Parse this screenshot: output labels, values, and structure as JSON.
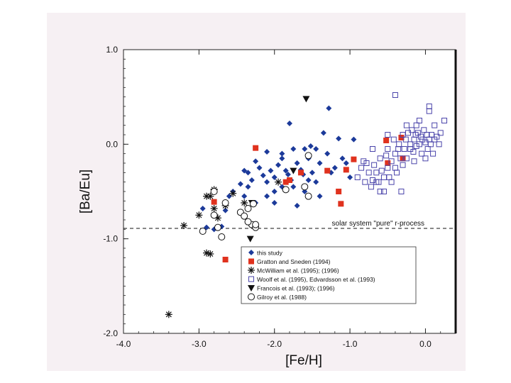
{
  "chart_data": {
    "type": "scatter",
    "xlabel": "[Fe/H]",
    "ylabel": "[Ba/Eu]",
    "xlim": [
      -4.0,
      0.4
    ],
    "ylim": [
      -2.0,
      1.0
    ],
    "xticks": [
      "-4.0",
      "-3.0",
      "-2.0",
      "-1.0",
      "0.0"
    ],
    "yticks": [
      "1.0",
      "0.0",
      "-1.0",
      "-2.0"
    ],
    "grid": false,
    "legend_position": "bottom-center",
    "reference_line": {
      "y": -0.89,
      "label": "solar system \"pure\" r-process",
      "style": "dashed"
    },
    "series": [
      {
        "name": "this study",
        "marker": "diamond",
        "color": "#1c3a9a",
        "points": [
          [
            -2.95,
            -0.68
          ],
          [
            -2.9,
            -0.88
          ],
          [
            -2.8,
            -0.9
          ],
          [
            -2.7,
            -0.87
          ],
          [
            -2.65,
            -0.7
          ],
          [
            -2.6,
            -0.55
          ],
          [
            -2.55,
            -0.5
          ],
          [
            -2.45,
            -0.42
          ],
          [
            -2.4,
            -0.55
          ],
          [
            -2.35,
            -0.45
          ],
          [
            -2.35,
            -0.3
          ],
          [
            -2.3,
            -0.38
          ],
          [
            -2.25,
            -0.18
          ],
          [
            -2.2,
            -0.25
          ],
          [
            -2.15,
            -0.33
          ],
          [
            -2.1,
            -0.4
          ],
          [
            -2.1,
            -0.08
          ],
          [
            -2.05,
            -0.28
          ],
          [
            -2.0,
            -0.35
          ],
          [
            -1.95,
            -0.22
          ],
          [
            -1.9,
            -0.45
          ],
          [
            -1.9,
            -0.15
          ],
          [
            -1.85,
            -0.28
          ],
          [
            -1.82,
            -0.32
          ],
          [
            -1.8,
            0.22
          ],
          [
            -1.78,
            -0.38
          ],
          [
            -1.75,
            -0.45
          ],
          [
            -1.7,
            -0.2
          ],
          [
            -1.65,
            -0.27
          ],
          [
            -1.62,
            -0.32
          ],
          [
            -1.6,
            -0.5
          ],
          [
            -1.55,
            -0.15
          ],
          [
            -1.55,
            -0.38
          ],
          [
            -1.52,
            -0.02
          ],
          [
            -1.5,
            -0.3
          ],
          [
            -1.45,
            -0.4
          ],
          [
            -1.4,
            -0.2
          ],
          [
            -1.35,
            0.12
          ],
          [
            -1.3,
            -0.1
          ],
          [
            -1.28,
            0.38
          ],
          [
            -1.25,
            -0.3
          ],
          [
            -1.2,
            -0.25
          ],
          [
            -1.15,
            0.06
          ],
          [
            -1.1,
            -0.15
          ],
          [
            -1.05,
            -0.2
          ],
          [
            -1.0,
            -0.35
          ],
          [
            -2.0,
            -0.62
          ],
          [
            -1.7,
            -0.65
          ],
          [
            -1.4,
            -0.55
          ],
          [
            -2.1,
            -0.55
          ],
          [
            -2.25,
            -0.62
          ],
          [
            -0.95,
            0.05
          ],
          [
            -1.6,
            -0.05
          ],
          [
            -1.75,
            -0.05
          ],
          [
            -1.9,
            -0.1
          ],
          [
            -2.0,
            -0.5
          ],
          [
            -1.45,
            -0.05
          ],
          [
            -2.4,
            -0.28
          ]
        ]
      },
      {
        "name": "Gratton and Sneden (1994)",
        "marker": "square-filled",
        "color": "#e0321e",
        "points": [
          [
            -2.25,
            -0.04
          ],
          [
            -2.8,
            -0.61
          ],
          [
            -2.65,
            -1.22
          ],
          [
            -1.8,
            -0.38
          ],
          [
            -1.65,
            -0.3
          ],
          [
            -1.85,
            -0.4
          ],
          [
            -1.3,
            -0.28
          ],
          [
            -1.15,
            -0.5
          ],
          [
            -1.12,
            -0.63
          ],
          [
            -1.05,
            -0.27
          ],
          [
            -0.95,
            -0.16
          ],
          [
            -0.52,
            0.04
          ],
          [
            -0.5,
            -0.2
          ],
          [
            -0.32,
            0.07
          ],
          [
            -0.3,
            -0.15
          ]
        ]
      },
      {
        "name": "McWilliam et al. (1995); (1996)",
        "marker": "asterisk",
        "color": "#111111",
        "points": [
          [
            -3.4,
            -1.8
          ],
          [
            -3.2,
            -0.86
          ],
          [
            -3.0,
            -0.75
          ],
          [
            -2.9,
            -0.55
          ],
          [
            -2.85,
            -0.55
          ],
          [
            -2.8,
            -0.68
          ],
          [
            -2.75,
            -0.78
          ],
          [
            -2.9,
            -1.15
          ],
          [
            -2.85,
            -1.16
          ],
          [
            -2.65,
            -0.65
          ],
          [
            -2.55,
            -0.52
          ],
          [
            -2.4,
            -0.62
          ],
          [
            -1.95,
            -0.4
          ],
          [
            -2.8,
            -0.48
          ]
        ]
      },
      {
        "name": "Woolf et al. (1995), Edvardsson et al. (1993)",
        "marker": "square-open",
        "color": "#4a44aa",
        "points": [
          [
            -0.9,
            -0.35
          ],
          [
            -0.85,
            -0.25
          ],
          [
            -0.8,
            -0.4
          ],
          [
            -0.78,
            -0.2
          ],
          [
            -0.75,
            -0.3
          ],
          [
            -0.72,
            -0.45
          ],
          [
            -0.7,
            -0.38
          ],
          [
            -0.68,
            -0.22
          ],
          [
            -0.65,
            -0.3
          ],
          [
            -0.62,
            -0.4
          ],
          [
            -0.6,
            -0.15
          ],
          [
            -0.58,
            -0.28
          ],
          [
            -0.55,
            -0.5
          ],
          [
            -0.55,
            -0.35
          ],
          [
            -0.52,
            -0.12
          ],
          [
            -0.5,
            -0.25
          ],
          [
            -0.5,
            -0.05
          ],
          [
            -0.48,
            -0.35
          ],
          [
            -0.45,
            -0.18
          ],
          [
            -0.45,
            -0.4
          ],
          [
            -0.42,
            0.05
          ],
          [
            -0.4,
            -0.1
          ],
          [
            -0.4,
            -0.25
          ],
          [
            -0.38,
            -0.3
          ],
          [
            -0.36,
            -0.05
          ],
          [
            -0.35,
            0.0
          ],
          [
            -0.33,
            -0.15
          ],
          [
            -0.3,
            0.1
          ],
          [
            -0.3,
            -0.22
          ],
          [
            -0.28,
            -0.05
          ],
          [
            -0.26,
            0.05
          ],
          [
            -0.25,
            -0.15
          ],
          [
            -0.23,
            0.12
          ],
          [
            -0.2,
            -0.05
          ],
          [
            -0.2,
            0.0
          ],
          [
            -0.18,
            0.15
          ],
          [
            -0.16,
            -0.08
          ],
          [
            -0.15,
            0.05
          ],
          [
            -0.13,
            0.1
          ],
          [
            -0.12,
            -0.02
          ],
          [
            -0.1,
            0.12
          ],
          [
            -0.08,
            0.0
          ],
          [
            -0.06,
            0.08
          ],
          [
            -0.05,
            -0.1
          ],
          [
            -0.04,
            0.05
          ],
          [
            -0.02,
            0.15
          ],
          [
            0.0,
            0.02
          ],
          [
            0.02,
            0.1
          ],
          [
            0.03,
            -0.05
          ],
          [
            0.05,
            0.05
          ],
          [
            0.07,
            0.0
          ],
          [
            0.08,
            0.1
          ],
          [
            0.1,
            -0.1
          ],
          [
            0.12,
            0.05
          ],
          [
            0.15,
            0.08
          ],
          [
            0.18,
            0.0
          ],
          [
            0.25,
            0.25
          ],
          [
            0.05,
            0.35
          ],
          [
            0.05,
            0.4
          ],
          [
            -0.4,
            0.52
          ],
          [
            -0.25,
            0.2
          ],
          [
            -0.6,
            -0.5
          ],
          [
            -0.32,
            -0.5
          ],
          [
            -0.65,
            -0.4
          ],
          [
            -0.82,
            -0.18
          ],
          [
            -0.7,
            -0.05
          ],
          [
            -0.5,
            0.1
          ],
          [
            0.2,
            0.12
          ],
          [
            -0.12,
            0.2
          ],
          [
            -0.08,
            0.25
          ],
          [
            0.12,
            0.2
          ],
          [
            -0.15,
            -0.18
          ],
          [
            0.0,
            -0.15
          ]
        ]
      },
      {
        "name": "Francois et al. (1993); (1996)",
        "marker": "triangle-down",
        "color": "#111111",
        "points": [
          [
            -1.58,
            0.48
          ],
          [
            -2.3,
            -0.62
          ],
          [
            -2.32,
            -1.0
          ],
          [
            -1.75,
            -0.28
          ],
          [
            -2.8,
            -0.5
          ]
        ]
      },
      {
        "name": "Gilroy et al. (1988)",
        "marker": "circle-open",
        "color": "#111111",
        "points": [
          [
            -2.95,
            -0.92
          ],
          [
            -2.8,
            -0.75
          ],
          [
            -2.75,
            -0.88
          ],
          [
            -2.7,
            -0.98
          ],
          [
            -2.65,
            -0.62
          ],
          [
            -2.45,
            -0.72
          ],
          [
            -2.4,
            -0.76
          ],
          [
            -2.35,
            -0.68
          ],
          [
            -2.3,
            -0.85
          ],
          [
            -2.28,
            -0.63
          ],
          [
            -2.25,
            -0.88
          ],
          [
            -2.35,
            -0.82
          ],
          [
            -2.8,
            -0.5
          ],
          [
            -1.55,
            -0.12
          ],
          [
            -1.6,
            -0.45
          ],
          [
            -1.55,
            -0.55
          ],
          [
            -1.85,
            -0.48
          ],
          [
            -2.25,
            -0.85
          ]
        ]
      }
    ]
  }
}
